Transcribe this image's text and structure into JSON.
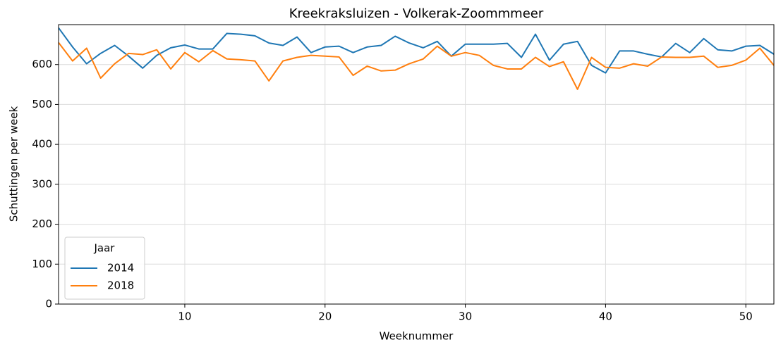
{
  "chart_data": {
    "type": "line",
    "title": "Kreekraksluizen - Volkerak-Zoommmeer",
    "xlabel": "Weeknummer",
    "ylabel": "Schuttingen per week",
    "x": [
      1,
      2,
      3,
      4,
      5,
      6,
      7,
      8,
      9,
      10,
      11,
      12,
      13,
      14,
      15,
      16,
      17,
      18,
      19,
      20,
      21,
      22,
      23,
      24,
      25,
      26,
      27,
      28,
      29,
      30,
      31,
      32,
      33,
      34,
      35,
      36,
      37,
      38,
      39,
      40,
      41,
      42,
      43,
      44,
      45,
      46,
      47,
      48,
      49,
      50,
      51,
      52
    ],
    "series": [
      {
        "name": "2014",
        "color": "#1f77b4",
        "values": [
          692,
          644,
          602,
          628,
          648,
          621,
          591,
          623,
          642,
          649,
          639,
          639,
          678,
          676,
          672,
          654,
          648,
          669,
          630,
          644,
          646,
          630,
          644,
          648,
          671,
          654,
          642,
          658,
          621,
          651,
          651,
          651,
          653,
          618,
          676,
          611,
          651,
          658,
          598,
          579,
          634,
          634,
          626,
          619,
          653,
          630,
          665,
          637,
          634,
          646,
          648,
          626
        ]
      },
      {
        "name": "2018",
        "color": "#ff7f0e",
        "values": [
          655,
          609,
          641,
          566,
          602,
          628,
          625,
          637,
          589,
          630,
          607,
          635,
          614,
          612,
          609,
          559,
          609,
          618,
          623,
          621,
          619,
          573,
          596,
          584,
          586,
          602,
          614,
          646,
          621,
          630,
          623,
          598,
          589,
          589,
          618,
          595,
          607,
          538,
          618,
          593,
          591,
          602,
          596,
          619,
          618,
          618,
          621,
          593,
          598,
          611,
          641,
          598
        ]
      }
    ],
    "legend_title": "Jaar",
    "legend": "lower left",
    "xlim": [
      1,
      52
    ],
    "xticks": [
      10,
      20,
      30,
      40,
      50
    ],
    "ylim": [
      0,
      700
    ],
    "yticks": [
      0,
      100,
      200,
      300,
      400,
      500,
      600
    ],
    "grid": true
  }
}
